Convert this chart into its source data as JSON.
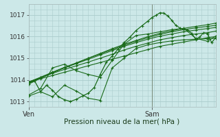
{
  "bg_color": "#cce8e8",
  "grid_color": "#aacccc",
  "line_color": "#1a6b1a",
  "xlabel": "Pression niveau de la mer( hPa )",
  "ylim": [
    1012.75,
    1017.5
  ],
  "yticks": [
    1013,
    1014,
    1015,
    1016,
    1017
  ],
  "xlim": [
    0,
    47
  ],
  "ven_x": 0,
  "sam_x": 31,
  "vline_x": 31,
  "smooth_lines": [
    {
      "x": [
        0,
        3,
        6,
        9,
        12,
        15,
        18,
        21,
        24,
        27,
        30,
        33,
        36,
        39,
        42,
        45,
        47
      ],
      "y": [
        1013.9,
        1014.05,
        1014.2,
        1014.35,
        1014.5,
        1014.65,
        1014.8,
        1014.95,
        1015.1,
        1015.25,
        1015.4,
        1015.55,
        1015.65,
        1015.75,
        1015.85,
        1015.95,
        1016.0
      ]
    },
    {
      "x": [
        0,
        3,
        6,
        9,
        12,
        15,
        18,
        21,
        24,
        27,
        30,
        33,
        36,
        39,
        42,
        45,
        47
      ],
      "y": [
        1013.9,
        1014.1,
        1014.3,
        1014.48,
        1014.65,
        1014.82,
        1015.0,
        1015.18,
        1015.38,
        1015.55,
        1015.7,
        1015.85,
        1015.95,
        1016.05,
        1016.12,
        1016.18,
        1016.25
      ]
    },
    {
      "x": [
        0,
        3,
        6,
        9,
        12,
        15,
        18,
        21,
        24,
        27,
        30,
        33,
        36,
        39,
        42,
        45,
        47
      ],
      "y": [
        1013.9,
        1014.12,
        1014.35,
        1014.55,
        1014.75,
        1014.95,
        1015.15,
        1015.35,
        1015.55,
        1015.72,
        1015.88,
        1016.02,
        1016.12,
        1016.22,
        1016.3,
        1016.37,
        1016.42
      ]
    },
    {
      "x": [
        0,
        3,
        6,
        9,
        12,
        15,
        18,
        21,
        24,
        27,
        30,
        33,
        36,
        39,
        42,
        45,
        47
      ],
      "y": [
        1013.85,
        1014.1,
        1014.35,
        1014.58,
        1014.78,
        1015.0,
        1015.2,
        1015.4,
        1015.6,
        1015.78,
        1015.95,
        1016.1,
        1016.22,
        1016.32,
        1016.4,
        1016.47,
        1016.52
      ]
    },
    {
      "x": [
        0,
        3,
        6,
        9,
        12,
        15,
        18,
        21,
        24,
        27,
        30,
        33,
        36,
        39,
        42,
        45,
        47
      ],
      "y": [
        1013.8,
        1014.07,
        1014.32,
        1014.56,
        1014.78,
        1015.0,
        1015.22,
        1015.44,
        1015.64,
        1015.82,
        1016.0,
        1016.15,
        1016.27,
        1016.38,
        1016.47,
        1016.55,
        1016.62
      ]
    }
  ],
  "volatile_line1": {
    "x": [
      0,
      3,
      6,
      9,
      12,
      15,
      18,
      21,
      24,
      27,
      30,
      33,
      36,
      39,
      42,
      45,
      47
    ],
    "y": [
      1013.25,
      1013.45,
      1013.22,
      1013.75,
      1013.48,
      1013.15,
      1013.05,
      1014.55,
      1015.0,
      1015.45,
      1015.62,
      1015.72,
      1015.8,
      1015.85,
      1015.88,
      1015.9,
      1015.92
    ]
  },
  "volatile_line2": {
    "x": [
      0,
      3,
      6,
      9,
      12,
      15,
      18,
      21,
      24,
      27,
      30,
      33,
      36,
      39,
      42,
      45,
      47
    ],
    "y": [
      1013.3,
      1013.6,
      1014.55,
      1014.72,
      1014.42,
      1014.25,
      1014.12,
      1014.9,
      1015.65,
      1016.05,
      1016.12,
      1016.22,
      1016.32,
      1016.38,
      1015.92,
      1015.78,
      1016.02
    ]
  },
  "main_line": {
    "x": [
      0,
      1.5,
      3,
      4.5,
      6,
      7.5,
      9,
      10.5,
      12,
      13.5,
      15,
      16.5,
      18,
      19.5,
      21,
      22.5,
      24,
      25.5,
      27,
      28.5,
      30,
      31,
      32,
      33,
      34,
      35,
      36,
      37,
      38,
      39,
      40,
      41,
      42,
      43,
      44,
      45,
      46,
      47
    ],
    "y": [
      1013.85,
      1013.95,
      1013.45,
      1013.75,
      1013.52,
      1013.22,
      1013.08,
      1013.0,
      1013.1,
      1013.25,
      1013.38,
      1013.65,
      1014.25,
      1014.8,
      1015.1,
      1015.42,
      1015.72,
      1015.98,
      1016.28,
      1016.5,
      1016.72,
      1016.88,
      1016.98,
      1017.1,
      1017.08,
      1016.95,
      1016.75,
      1016.52,
      1016.4,
      1016.32,
      1016.3,
      1016.15,
      1015.88,
      1015.98,
      1016.18,
      1016.12,
      1015.72,
      1015.95
    ]
  }
}
